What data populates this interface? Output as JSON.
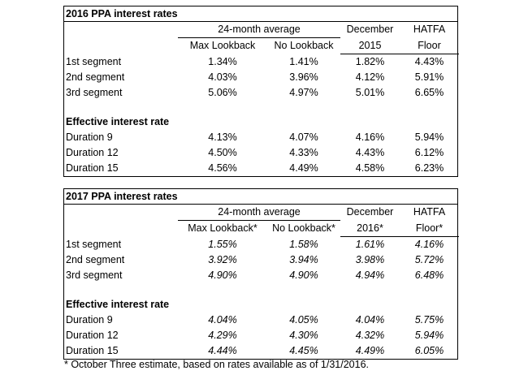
{
  "tables": [
    {
      "title": "2016 PPA interest rates",
      "group_header": "24-month average",
      "col_headers_top": [
        "December",
        "HATFA"
      ],
      "col_headers": [
        "Max Lookback",
        "No Lookback",
        "2015",
        "Floor"
      ],
      "segments": [
        {
          "label": "1st segment",
          "values": [
            "1.34%",
            "1.41%",
            "1.82%",
            "4.43%"
          ]
        },
        {
          "label": "2nd segment",
          "values": [
            "4.03%",
            "3.96%",
            "4.12%",
            "5.91%"
          ]
        },
        {
          "label": "3rd segment",
          "values": [
            "5.06%",
            "4.97%",
            "5.01%",
            "6.65%"
          ]
        }
      ],
      "effective_heading": "Effective interest rate",
      "durations": [
        {
          "label": "Duration 9",
          "values": [
            "4.13%",
            "4.07%",
            "4.16%",
            "5.94%"
          ]
        },
        {
          "label": "Duration 12",
          "values": [
            "4.50%",
            "4.33%",
            "4.43%",
            "6.12%"
          ]
        },
        {
          "label": "Duration 15",
          "values": [
            "4.56%",
            "4.49%",
            "4.58%",
            "6.23%"
          ]
        }
      ]
    },
    {
      "title": "2017 PPA interest rates",
      "group_header": "24-month average",
      "col_headers_top": [
        "December",
        "HATFA"
      ],
      "col_headers": [
        "Max Lookback*",
        "No Lookback*",
        "2016*",
        "Floor*"
      ],
      "segments": [
        {
          "label": "1st segment",
          "values": [
            "1.55%",
            "1.58%",
            "1.61%",
            "4.16%"
          ]
        },
        {
          "label": "2nd segment",
          "values": [
            "3.92%",
            "3.94%",
            "3.98%",
            "5.72%"
          ]
        },
        {
          "label": "3rd segment",
          "values": [
            "4.90%",
            "4.90%",
            "4.94%",
            "6.48%"
          ]
        }
      ],
      "effective_heading": "Effective interest rate",
      "durations": [
        {
          "label": "Duration 9",
          "values": [
            "4.04%",
            "4.05%",
            "4.04%",
            "5.75%"
          ]
        },
        {
          "label": "Duration 12",
          "values": [
            "4.29%",
            "4.30%",
            "4.32%",
            "5.94%"
          ]
        },
        {
          "label": "Duration 15",
          "values": [
            "4.44%",
            "4.45%",
            "4.49%",
            "6.05%"
          ]
        }
      ]
    }
  ],
  "footnote": "* October Three estimate, based on rates available as of 1/31/2016."
}
